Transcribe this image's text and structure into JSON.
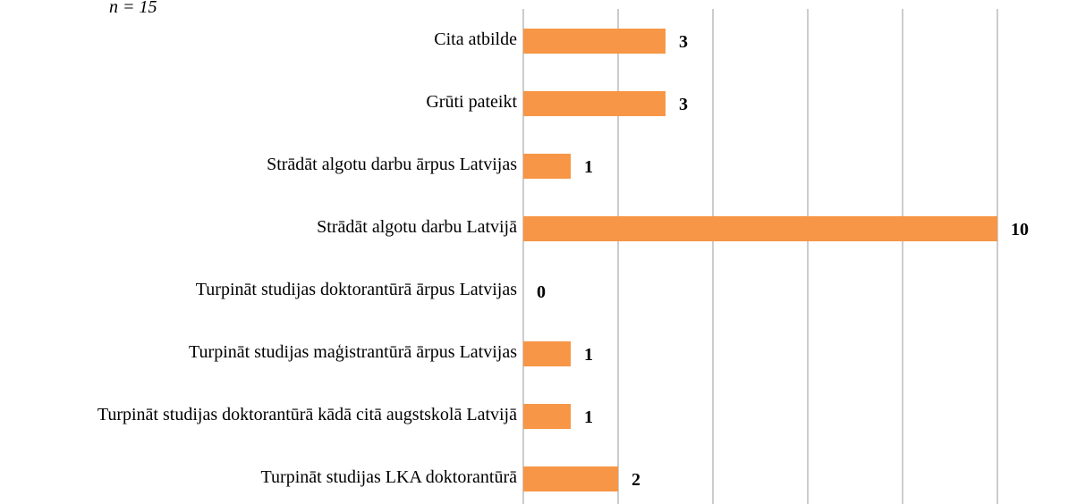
{
  "chart_data": {
    "type": "bar",
    "orientation": "horizontal",
    "subtitle": "n = 15",
    "categories": [
      "Cita atbilde",
      "Grūti pateikt",
      "Strādāt algotu darbu ārpus Latvijas",
      "Strādāt algotu darbu Latvijā",
      "Turpināt studijas doktorantūrā ārpus Latvijas",
      "Turpināt studijas maģistrantūrā ārpus Latvijas",
      "Turpināt studijas doktorantūrā kādā citā augstskolā Latvijā",
      "Turpināt studijas LKA doktorantūrā"
    ],
    "values": [
      3,
      3,
      1,
      10,
      0,
      1,
      1,
      2
    ],
    "color": "#f79646",
    "xlim": [
      0,
      10
    ],
    "xticks": [
      0,
      2,
      4,
      6,
      8,
      10
    ],
    "grid": true
  }
}
